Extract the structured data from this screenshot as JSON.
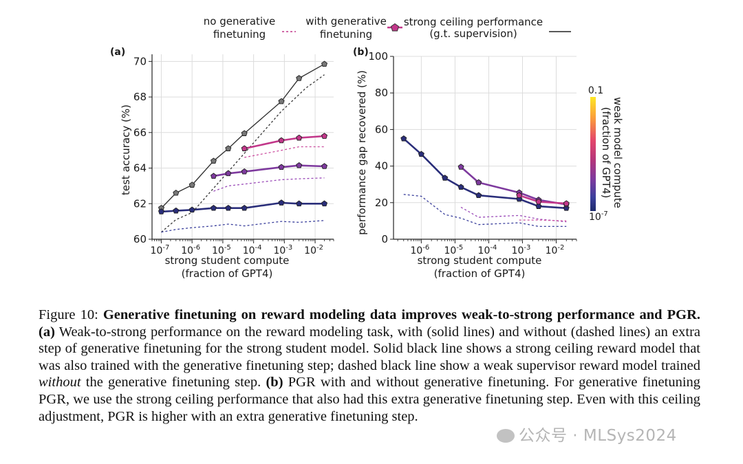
{
  "legend": {
    "no_gen": [
      "no generative",
      "finetuning"
    ],
    "with_gen": [
      "with generative",
      "finetuning"
    ],
    "ceiling": [
      "strong ceiling performance",
      "(g.t. supervision)"
    ]
  },
  "colorbar": {
    "label": [
      "weak model compute",
      "(fraction of GPT4)"
    ],
    "top_label": "0.1",
    "bottom_label": "10",
    "bottom_exp": "-7",
    "colors": [
      "#fde725",
      "#fb9f3a",
      "#e4466b",
      "#b5367a",
      "#7e3a9e",
      "#3b3f9c",
      "#1e2a6b"
    ]
  },
  "caption": {
    "figure_label": "Figure 10:",
    "title": "Generative finetuning on reward modeling data improves weak-to-strong performance and PGR.",
    "a_label": "(a)",
    "a_text": "Weak-to-strong performance on the reward modeling task, with (solid lines) and without (dashed lines) an extra step of generative finetuning for the strong student model. Solid black line shows a strong ceiling reward model that was also trained with the generative finetuning step; dashed black line show a weak supervisor reward model trained",
    "a_italic": "without",
    "a_text2": "the generative finetuning step.",
    "b_label": "(b)",
    "b_text": "PGR with and without generative finetuning. For generative finetuning PGR, we use the strong ceiling performance that also had this extra generative finetuning step. Even with this ceiling adjustment, PGR is higher with an extra generative finetuning step."
  },
  "watermark": "公众号 · MLSys2024",
  "chart_data": [
    {
      "type": "line",
      "panel_label": "(a)",
      "xlabel": [
        "strong student compute",
        "(fraction of GPT4)"
      ],
      "ylabel": "test accuracy (%)",
      "xscale": "log",
      "xlim": [
        5e-08,
        0.04
      ],
      "ylim": [
        60,
        70.4
      ],
      "yticks": [
        60,
        62,
        64,
        66,
        68,
        70
      ],
      "xticks": [
        -7,
        -6,
        -5,
        -4,
        -3,
        -2
      ],
      "series": [
        {
          "style": "ceiling-solid",
          "color": "#555555",
          "marker": true,
          "x": [
            1e-07,
            3e-07,
            1e-06,
            5e-06,
            1.5e-05,
            5e-05,
            0.0008,
            0.003,
            0.02
          ],
          "y": [
            61.75,
            62.6,
            63.05,
            64.4,
            65.1,
            65.95,
            67.75,
            69.05,
            69.85
          ]
        },
        {
          "style": "ceiling-dashed",
          "color": "#555555",
          "x": [
            1e-07,
            3e-07,
            1e-06,
            1.5e-05,
            0.0008,
            0.005,
            0.02
          ],
          "y": [
            60.4,
            61.1,
            61.5,
            63.8,
            67.2,
            68.5,
            69.25
          ]
        },
        {
          "style": "solid",
          "color": "#2a2e7a",
          "x": [
            1e-07,
            3e-07,
            1e-06,
            5e-06,
            1.5e-05,
            5e-05,
            0.0008,
            0.003,
            0.02
          ],
          "y": [
            61.55,
            61.6,
            61.65,
            61.75,
            61.75,
            61.75,
            62.05,
            62.0,
            62.0
          ]
        },
        {
          "style": "dashed",
          "color": "#3a3f9c",
          "x": [
            1e-07,
            3e-07,
            1e-06,
            5e-06,
            1.5e-05,
            5e-05,
            0.0008,
            0.003,
            0.02
          ],
          "y": [
            60.4,
            60.55,
            60.65,
            60.75,
            60.85,
            60.75,
            61.0,
            60.95,
            61.05
          ]
        },
        {
          "style": "solid",
          "color": "#7e3a9e",
          "x": [
            5e-06,
            1.5e-05,
            5e-05,
            0.0008,
            0.003,
            0.02
          ],
          "y": [
            63.55,
            63.7,
            63.8,
            64.05,
            64.15,
            64.1
          ]
        },
        {
          "style": "dashed",
          "color": "#9a4ab8",
          "x": [
            5e-06,
            1.5e-05,
            5e-05,
            0.0008,
            0.003,
            0.02
          ],
          "y": [
            62.7,
            63.0,
            63.1,
            63.35,
            63.4,
            63.45
          ]
        },
        {
          "style": "solid",
          "color": "#c2378a",
          "x": [
            5e-05,
            0.0008,
            0.003,
            0.02
          ],
          "y": [
            65.1,
            65.55,
            65.7,
            65.8
          ]
        },
        {
          "style": "dashed",
          "color": "#cc4fa0",
          "x": [
            5e-05,
            0.0008,
            0.003,
            0.02
          ],
          "y": [
            64.6,
            65.0,
            65.2,
            65.2
          ]
        }
      ]
    },
    {
      "type": "line",
      "panel_label": "(b)",
      "xlabel": [
        "strong student compute",
        "(fraction of GPT4)"
      ],
      "ylabel": "performance gap recovered (%)",
      "xscale": "log",
      "xlim": [
        1.5e-07,
        0.04
      ],
      "ylim": [
        0,
        100
      ],
      "yticks": [
        0,
        20,
        40,
        60,
        80,
        100
      ],
      "xticks": [
        -6,
        -5,
        -4,
        -3,
        -2
      ],
      "series": [
        {
          "style": "solid",
          "color": "#2a2e7a",
          "x": [
            3e-07,
            1e-06,
            5e-06,
            1.5e-05,
            5e-05,
            0.0008,
            0.003,
            0.02
          ],
          "y": [
            55,
            46.5,
            33.5,
            28.5,
            24,
            22,
            18,
            17
          ]
        },
        {
          "style": "dashed",
          "color": "#3a3f9c",
          "x": [
            3e-07,
            1e-06,
            5e-06,
            1.5e-05,
            5e-05,
            0.0008,
            0.003,
            0.02
          ],
          "y": [
            24.5,
            23.5,
            13.5,
            11.5,
            8,
            9,
            7,
            7
          ]
        },
        {
          "style": "solid",
          "color": "#7e3a9e",
          "x": [
            1.5e-05,
            5e-05,
            0.0008,
            0.003,
            0.02
          ],
          "y": [
            39.5,
            31,
            25.5,
            21.5,
            19
          ]
        },
        {
          "style": "dashed",
          "color": "#9a4ab8",
          "x": [
            1.5e-05,
            5e-05,
            0.0008,
            0.003,
            0.02
          ],
          "y": [
            17.5,
            12,
            13,
            11,
            9.5
          ]
        },
        {
          "style": "solid",
          "color": "#c2378a",
          "x": [
            0.0008,
            0.003,
            0.02
          ],
          "y": [
            24,
            20.5,
            19.5
          ]
        },
        {
          "style": "dashed",
          "color": "#cc4fa0",
          "x": [
            0.0008,
            0.003,
            0.02
          ],
          "y": [
            10.5,
            10.5,
            10
          ]
        }
      ]
    }
  ]
}
